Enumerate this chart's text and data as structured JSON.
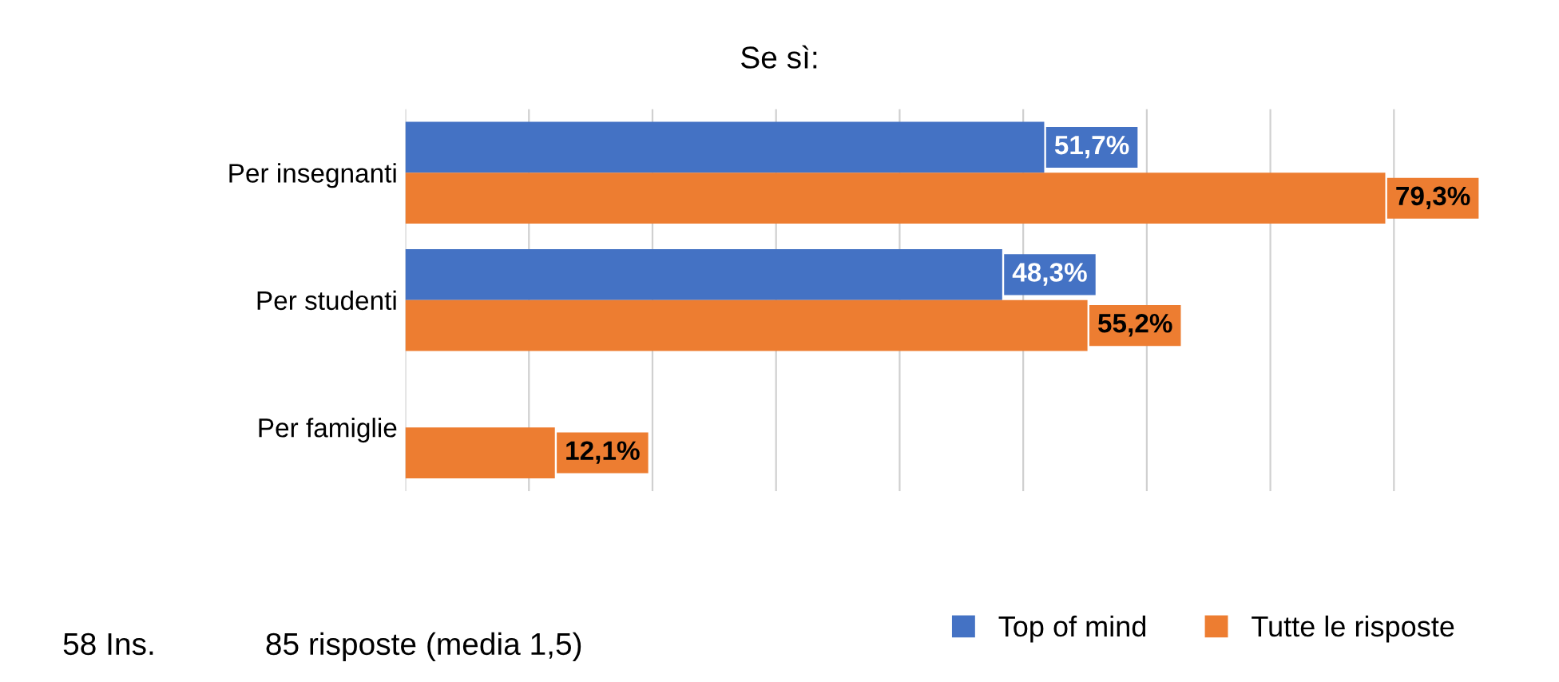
{
  "chart_data": {
    "type": "bar",
    "orientation": "horizontal",
    "title": "Se sì:",
    "categories": [
      "Per insegnanti",
      "Per studenti",
      "Per famiglie"
    ],
    "series": [
      {
        "name": "Top of mind",
        "color": "#4472c4",
        "values": [
          51.7,
          48.3,
          null
        ],
        "value_labels": [
          "51,7%",
          "48,3%",
          null
        ]
      },
      {
        "name": "Tutte le risposte",
        "color": "#ed7d31",
        "values": [
          79.3,
          55.2,
          12.1
        ],
        "value_labels": [
          "79,3%",
          "55,2%",
          "12,1%"
        ]
      }
    ],
    "tick_labels": "y",
    "grid": "x",
    "legend": "bottom right",
    "annotations": [
      "58 Ins.",
      "85 risposte (media 1,5)"
    ]
  }
}
